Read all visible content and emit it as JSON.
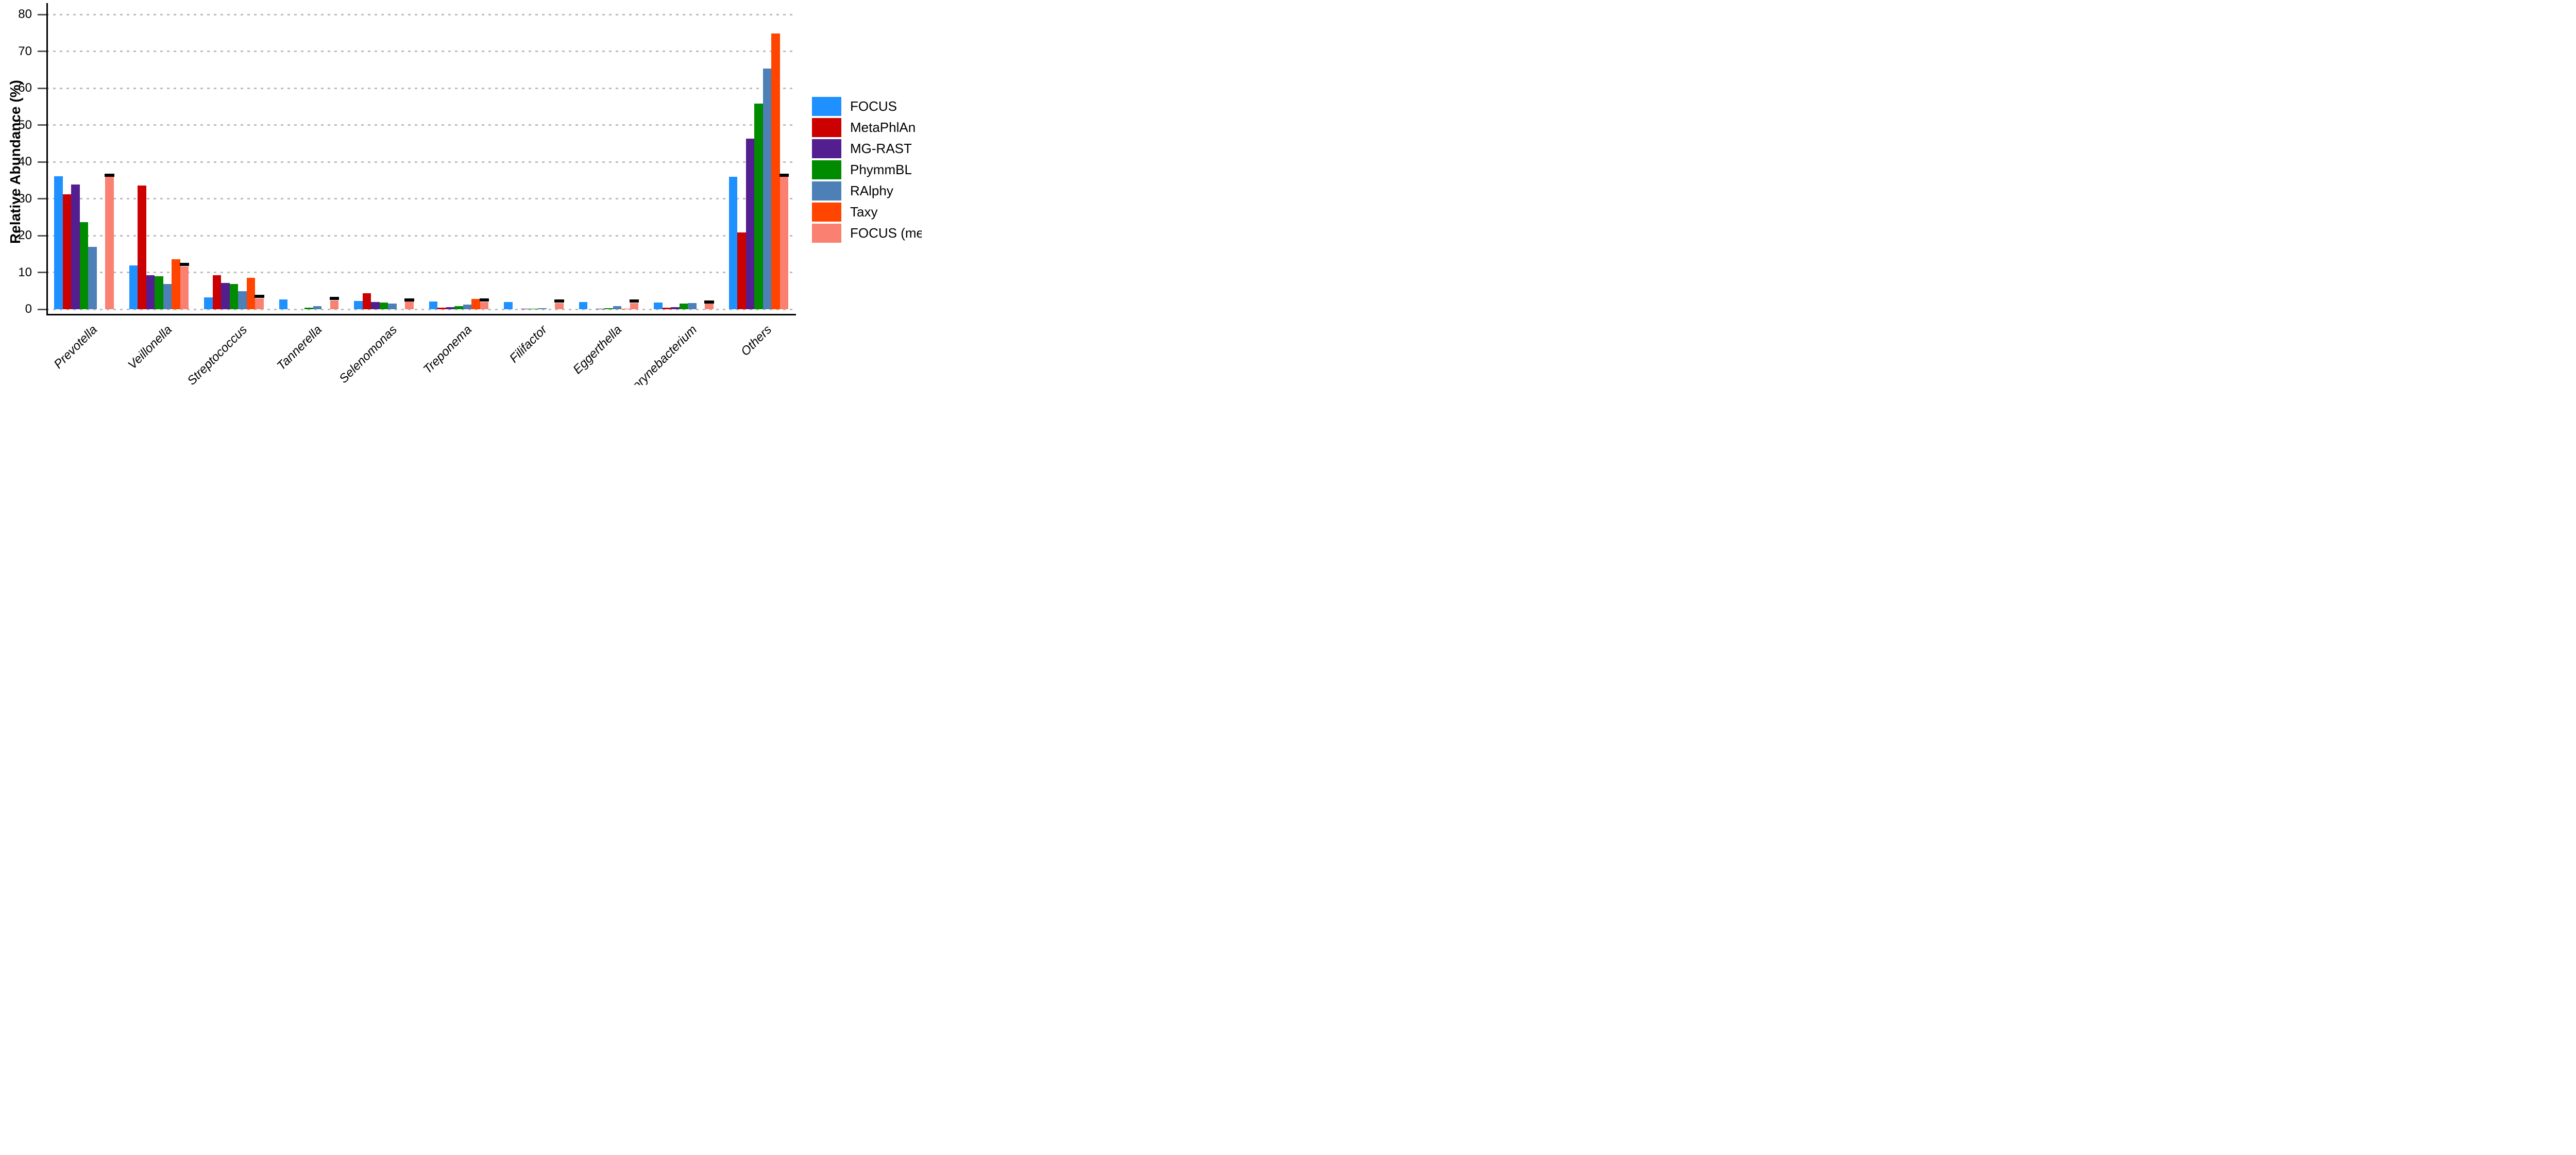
{
  "chart_data": {
    "type": "bar",
    "title": "",
    "xlabel": "",
    "ylabel": "Relative Abundance (%)",
    "ylim": [
      0,
      80
    ],
    "yticks": [
      0,
      10,
      20,
      30,
      40,
      50,
      60,
      70,
      80
    ],
    "grid": "horizontal dashed gray lines at every 10",
    "legend_position": "right",
    "categories": [
      "Prevotella",
      "Veillonella",
      "Streptococcus",
      "Tannerella",
      "Selenomonas",
      "Treponema",
      "Filifactor",
      "Eggerthella",
      "Corynebacterium",
      "Others"
    ],
    "series": [
      {
        "name": "FOCUS",
        "color": "#1E90FF",
        "values": [
          36.1,
          11.9,
          3.2,
          2.6,
          2.2,
          2.1,
          2.0,
          1.9,
          1.8,
          36.0
        ]
      },
      {
        "name": "MetaPhlAn",
        "color": "#CC0000",
        "values": [
          31.2,
          33.6,
          9.2,
          0,
          4.3,
          0.4,
          0,
          0,
          0.4,
          20.8
        ]
      },
      {
        "name": "MG-RAST",
        "color": "#531E90",
        "values": [
          33.9,
          9.3,
          7.1,
          0,
          2.0,
          0.6,
          0.1,
          0.1,
          0.6,
          46.3
        ]
      },
      {
        "name": "PhymmBL",
        "color": "#008B00",
        "values": [
          23.7,
          9.0,
          6.8,
          0.4,
          1.8,
          0.8,
          0.2,
          0.3,
          1.5,
          55.8
        ]
      },
      {
        "name": "RAlphy",
        "color": "#4C80B6",
        "values": [
          16.9,
          6.8,
          4.9,
          0.8,
          1.5,
          1.2,
          0.3,
          0.9,
          1.7,
          65.3
        ]
      },
      {
        "name": "Taxy",
        "color": "#FF4500",
        "values": [
          0,
          13.5,
          8.6,
          0,
          0,
          2.8,
          0,
          0.2,
          0,
          74.8
        ]
      },
      {
        "name": "FOCUS (mean)",
        "color": "#FA8072",
        "values": [
          36.1,
          11.6,
          2.9,
          2.4,
          2.1,
          2.0,
          1.7,
          1.7,
          1.5,
          35.9
        ]
      }
    ],
    "mean_markers": {
      "description": "black horizontal segment drawn on top of the FOCUS (mean) bar in each category",
      "color": "#000000",
      "values": [
        36.4,
        12.1,
        3.5,
        2.9,
        2.5,
        2.5,
        2.2,
        2.2,
        2.0,
        36.4
      ]
    }
  },
  "legend": {
    "items": [
      {
        "label": "FOCUS",
        "color": "#1E90FF"
      },
      {
        "label": "MetaPhlAn",
        "color": "#CC0000"
      },
      {
        "label": "MG-RAST",
        "color": "#531E90"
      },
      {
        "label": "PhymmBL",
        "color": "#008B00"
      },
      {
        "label": "RAlphy",
        "color": "#4C80B6"
      },
      {
        "label": "Taxy",
        "color": "#FF4500"
      },
      {
        "label": "FOCUS (mean)",
        "color": "#FA8072"
      }
    ]
  }
}
